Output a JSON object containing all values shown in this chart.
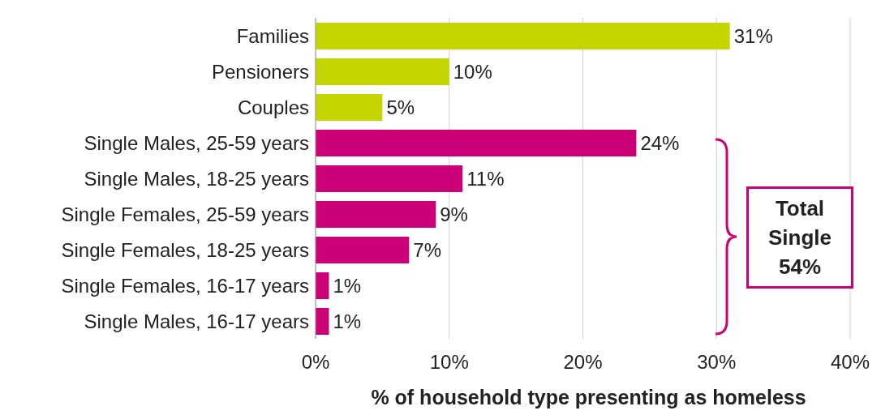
{
  "chart_data": {
    "type": "bar",
    "orientation": "horizontal",
    "categories": [
      "Families",
      "Pensioners",
      "Couples",
      "Single Males, 25-59 years",
      "Single Males, 18-25 years",
      "Single Females, 25-59 years",
      "Single Females, 18-25 years",
      "Single Females, 16-17 years",
      "Single Males, 16-17 years"
    ],
    "values": [
      31,
      10,
      5,
      24,
      11,
      9,
      7,
      1,
      1
    ],
    "value_labels": [
      "31%",
      "10%",
      "5%",
      "24%",
      "11%",
      "9%",
      "7%",
      "1%",
      "1%"
    ],
    "colors": [
      "#c4d600",
      "#c4d600",
      "#c4d600",
      "#cc0077",
      "#cc0077",
      "#cc0077",
      "#cc0077",
      "#cc0077",
      "#cc0077"
    ],
    "xlim": [
      0,
      40
    ],
    "xticks": [
      {
        "value": 0,
        "label": "0%"
      },
      {
        "value": 10,
        "label": "10%"
      },
      {
        "value": 20,
        "label": "20%"
      },
      {
        "value": 30,
        "label": "30%"
      },
      {
        "value": 40,
        "label": "40%"
      }
    ],
    "xlabel": "% of household type presenting as homeless",
    "grid": "x",
    "annotations": [
      "Total Single 54%"
    ]
  }
}
